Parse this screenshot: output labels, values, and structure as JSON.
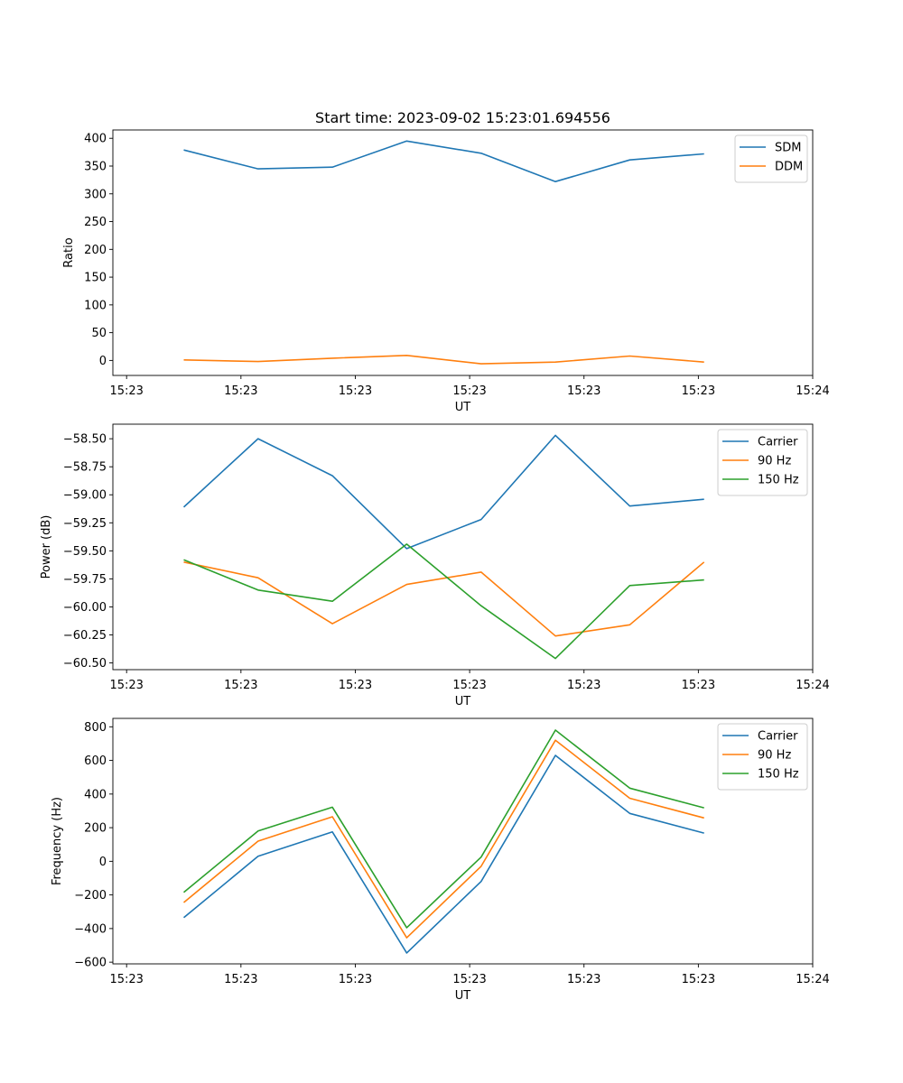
{
  "figure_title": "Start time: 2023-09-02 15:23:01.694556",
  "colors": {
    "c0": "#1f77b4",
    "c1": "#ff7f0e",
    "c2": "#2ca02c"
  },
  "chart_data": [
    {
      "type": "line",
      "title": "Start time: 2023-09-02 15:23:01.694556",
      "xlabel": "UT",
      "ylabel": "Ratio",
      "x_tick_labels": [
        "15:23",
        "15:23",
        "15:23",
        "15:23",
        "15:23",
        "15:23",
        "15:24"
      ],
      "x_tick_values": [
        0,
        1,
        2,
        3,
        4,
        5,
        6
      ],
      "xlim": [
        -0.12,
        6.0
      ],
      "x": [
        0.5,
        1.15,
        1.8,
        2.45,
        3.1,
        3.75,
        4.4,
        5.05
      ],
      "ylim": [
        -27,
        415
      ],
      "yticks": [
        0,
        50,
        100,
        150,
        200,
        250,
        300,
        350,
        400
      ],
      "legend_position": "top-right",
      "series": [
        {
          "name": "SDM",
          "color": "#1f77b4",
          "values": [
            379,
            345,
            348,
            395,
            373,
            322,
            361,
            372
          ]
        },
        {
          "name": "DDM",
          "color": "#ff7f0e",
          "values": [
            1,
            -2,
            4,
            9,
            -6,
            -3,
            8,
            -3
          ]
        }
      ]
    },
    {
      "type": "line",
      "title": "",
      "xlabel": "UT",
      "ylabel": "Power (dB)",
      "x_tick_labels": [
        "15:23",
        "15:23",
        "15:23",
        "15:23",
        "15:23",
        "15:23",
        "15:24"
      ],
      "x_tick_values": [
        0,
        1,
        2,
        3,
        4,
        5,
        6
      ],
      "xlim": [
        -0.12,
        6.0
      ],
      "x": [
        0.5,
        1.15,
        1.8,
        2.45,
        3.1,
        3.75,
        4.4,
        5.05
      ],
      "ylim": [
        -60.56,
        -58.37
      ],
      "yticks": [
        -60.5,
        -60.25,
        -60.0,
        -59.75,
        -59.5,
        -59.25,
        -59.0,
        -58.75,
        -58.5
      ],
      "ytick_labels": [
        "−60.50",
        "−60.25",
        "−60.00",
        "−59.75",
        "−59.50",
        "−59.25",
        "−59.00",
        "−58.75",
        "−58.50"
      ],
      "legend_position": "top-right",
      "series": [
        {
          "name": "Carrier",
          "color": "#1f77b4",
          "values": [
            -59.11,
            -58.5,
            -58.83,
            -59.48,
            -59.22,
            -58.47,
            -59.1,
            -59.04
          ]
        },
        {
          "name": "90 Hz",
          "color": "#ff7f0e",
          "values": [
            -59.6,
            -59.74,
            -60.15,
            -59.8,
            -59.69,
            -60.26,
            -60.16,
            -59.6
          ]
        },
        {
          "name": "150 Hz",
          "color": "#2ca02c",
          "values": [
            -59.58,
            -59.85,
            -59.95,
            -59.44,
            -59.99,
            -60.46,
            -59.81,
            -59.76
          ]
        }
      ]
    },
    {
      "type": "line",
      "title": "",
      "xlabel": "UT",
      "ylabel": "Frequency (Hz)",
      "x_tick_labels": [
        "15:23",
        "15:23",
        "15:23",
        "15:23",
        "15:23",
        "15:23",
        "15:24"
      ],
      "x_tick_values": [
        0,
        1,
        2,
        3,
        4,
        5,
        6
      ],
      "xlim": [
        -0.12,
        6.0
      ],
      "x": [
        0.5,
        1.15,
        1.8,
        2.45,
        3.1,
        3.75,
        4.4,
        5.05
      ],
      "ylim": [
        -610,
        850
      ],
      "yticks": [
        -600,
        -400,
        -200,
        0,
        200,
        400,
        600,
        800
      ],
      "ytick_labels": [
        "−600",
        "−400",
        "−200",
        "0",
        "200",
        "400",
        "600",
        "800"
      ],
      "legend_position": "top-right",
      "series": [
        {
          "name": "Carrier",
          "color": "#1f77b4",
          "values": [
            -335,
            30,
            175,
            -545,
            -120,
            630,
            285,
            168
          ]
        },
        {
          "name": "90 Hz",
          "color": "#ff7f0e",
          "values": [
            -245,
            120,
            265,
            -455,
            -30,
            720,
            375,
            258
          ]
        },
        {
          "name": "150 Hz",
          "color": "#2ca02c",
          "values": [
            -185,
            180,
            322,
            -395,
            25,
            780,
            435,
            318
          ]
        }
      ]
    }
  ]
}
